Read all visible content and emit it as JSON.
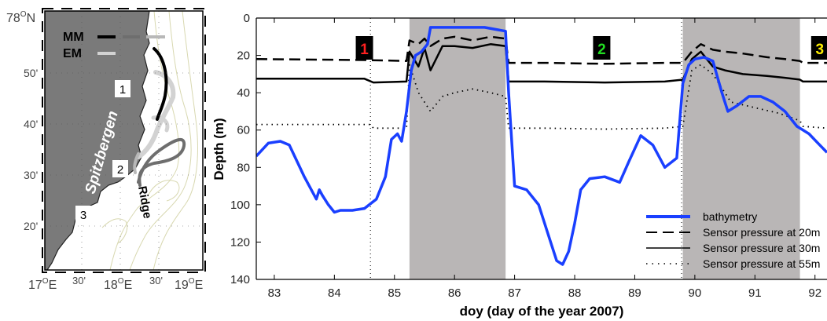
{
  "map": {
    "landmass_label": "Spitzbergen",
    "ridge_label": "Ridge",
    "legend": [
      {
        "label": "MM",
        "colors": [
          "#000000",
          "#6e6e6e",
          "#b8b8b8"
        ]
      },
      {
        "label": "EM",
        "colors": [
          "#d2d2d2"
        ]
      }
    ],
    "lat_ticks": [
      {
        "label": "78",
        "unit": "O",
        "suffix": "N"
      },
      {
        "label": "50'"
      },
      {
        "label": "40'"
      },
      {
        "label": "30'"
      },
      {
        "label": "20'"
      }
    ],
    "lon_ticks": [
      {
        "label": "17",
        "unit": "O",
        "suffix": "E"
      },
      {
        "label": "30'"
      },
      {
        "label": "18",
        "unit": "O",
        "suffix": "E"
      },
      {
        "label": "30'"
      },
      {
        "label": "19",
        "unit": "O",
        "suffix": "E"
      }
    ],
    "station_labels": [
      "1",
      "2",
      "3"
    ],
    "colors": {
      "land": "#7a7a7a",
      "sea": "#ffffff",
      "contour": "#d8d8b0"
    }
  },
  "chart_data": {
    "type": "line",
    "xlabel": "doy (day of the year 2007)",
    "ylabel": "Depth (m)",
    "xlim": [
      82.7,
      92.2
    ],
    "ylim": [
      140,
      0
    ],
    "y_inverted": true,
    "x_ticks": [
      83,
      84,
      85,
      86,
      87,
      88,
      89,
      90,
      91,
      92
    ],
    "y_ticks": [
      0,
      20,
      40,
      60,
      80,
      100,
      120,
      140
    ],
    "shaded_periods": [
      [
        85.25,
        86.85
      ],
      [
        89.8,
        91.75
      ]
    ],
    "event_lines": [
      84.6,
      89.78
    ],
    "event_labels": [
      {
        "label": "1",
        "x": 84.5,
        "color": "#ff2020"
      },
      {
        "label": "2",
        "x": 88.45,
        "color": "#22dd22"
      },
      {
        "label": "3",
        "x": 92.08,
        "color": "#ffee00"
      }
    ],
    "legend": [
      {
        "label": "bathymetry",
        "style": "solid-thick",
        "color": "#1a3fff"
      },
      {
        "label": "Sensor pressure at 20m",
        "style": "dashed",
        "color": "#000000"
      },
      {
        "label": "Sensor pressure at 30m",
        "style": "solid",
        "color": "#000000"
      },
      {
        "label": "Sensor pressure at 55m",
        "style": "dotted",
        "color": "#000000"
      }
    ],
    "series": [
      {
        "name": "bathymetry",
        "color": "#1a3fff",
        "x": [
          82.7,
          82.9,
          83.1,
          83.25,
          83.5,
          83.7,
          83.75,
          83.8,
          83.9,
          84.0,
          84.1,
          84.3,
          84.5,
          84.7,
          84.85,
          84.95,
          85.05,
          85.12,
          85.2,
          85.28,
          85.35,
          85.45,
          85.55,
          85.6,
          86.0,
          86.5,
          86.85,
          86.9,
          87.0,
          87.2,
          87.4,
          87.55,
          87.7,
          87.8,
          87.9,
          88.0,
          88.1,
          88.25,
          88.5,
          88.75,
          88.9,
          89.1,
          89.3,
          89.5,
          89.7,
          89.8,
          89.9,
          90.0,
          90.15,
          90.3,
          90.45,
          90.55,
          90.7,
          90.9,
          91.1,
          91.3,
          91.5,
          91.7,
          91.9,
          92.05,
          92.2
        ],
        "y": [
          74,
          67,
          66,
          68,
          85,
          97,
          92,
          95,
          100,
          104,
          103,
          103,
          102,
          97,
          85,
          65,
          62,
          66,
          50,
          28,
          20,
          18,
          14,
          5,
          5,
          5,
          7,
          40,
          90,
          92,
          100,
          115,
          130,
          132,
          125,
          110,
          92,
          86,
          85,
          88,
          77,
          63,
          68,
          80,
          75,
          35,
          25,
          22,
          21,
          23,
          40,
          50,
          47,
          42,
          42,
          45,
          50,
          58,
          62,
          67,
          72
        ]
      },
      {
        "name": "Sensor pressure at 20m",
        "color": "#000000",
        "x": [
          82.7,
          84.5,
          85.2,
          85.25,
          85.4,
          85.5,
          85.6,
          85.8,
          86.0,
          86.3,
          86.6,
          86.85,
          86.9,
          87.5,
          88.5,
          89.5,
          89.8,
          89.95,
          90.1,
          90.3,
          90.5,
          90.8,
          91.2,
          91.5,
          91.75,
          91.8,
          92.2
        ],
        "y": [
          22,
          22.5,
          23,
          12,
          14,
          11,
          15,
          11,
          10,
          12,
          10,
          11,
          24,
          24,
          24.5,
          24,
          24,
          18,
          14,
          17,
          18,
          19,
          21,
          22,
          23,
          24,
          24
        ]
      },
      {
        "name": "Sensor pressure at 30m",
        "color": "#000000",
        "x": [
          82.7,
          84.5,
          84.65,
          85.2,
          85.25,
          85.4,
          85.5,
          85.6,
          85.8,
          86.0,
          86.3,
          86.6,
          86.85,
          86.9,
          87.5,
          88.5,
          89.5,
          89.8,
          89.95,
          90.1,
          90.3,
          90.5,
          90.8,
          91.2,
          91.5,
          91.75,
          91.8,
          92.2
        ],
        "y": [
          32.5,
          32.5,
          34.5,
          34,
          18,
          26,
          16,
          28,
          15,
          15,
          16,
          14,
          15,
          34,
          34,
          34.5,
          34,
          33,
          22,
          18,
          26,
          28,
          30,
          31,
          32,
          33,
          34,
          34
        ]
      },
      {
        "name": "Sensor pressure at 55m",
        "color": "#000000",
        "x": [
          82.7,
          84.0,
          84.6,
          84.65,
          85.2,
          85.25,
          85.4,
          85.6,
          85.8,
          86.0,
          86.3,
          86.6,
          86.85,
          86.9,
          87.5,
          88.5,
          89.5,
          89.8,
          89.95,
          90.1,
          90.3,
          90.6,
          91.0,
          91.4,
          91.75,
          91.8,
          92.2
        ],
        "y": [
          57,
          57,
          57,
          59,
          59,
          25,
          40,
          50,
          42,
          40,
          38,
          40,
          42,
          59,
          59,
          59.5,
          59,
          58,
          28,
          25,
          30,
          45,
          48,
          51,
          55,
          58,
          59
        ]
      }
    ]
  }
}
